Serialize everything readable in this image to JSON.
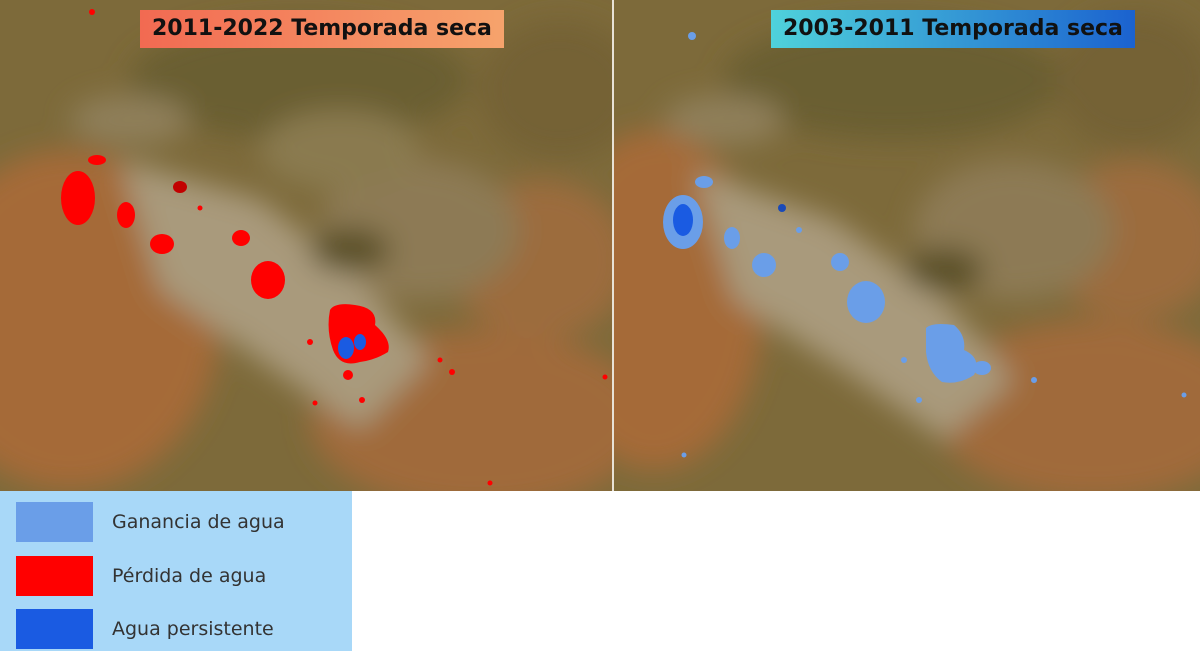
{
  "panels": {
    "left": {
      "title": "2011-2022 Temporada seca"
    },
    "right": {
      "title": "2003-2011 Temporada seca"
    }
  },
  "legend": {
    "items": [
      {
        "label": "Ganancia de agua",
        "color": "#6a9ee8"
      },
      {
        "label": "Pérdida de agua",
        "color": "#ff0000"
      },
      {
        "label": "Agua persistente",
        "color": "#1a5be2"
      }
    ]
  },
  "colors": {
    "terrain_dark": "#6e6233",
    "terrain_orange": "#a56b38",
    "terrain_tan": "#a99a7b",
    "water_gain": "#6a9ee8",
    "water_loss": "#ff0000",
    "water_persistent": "#1a5be2"
  }
}
